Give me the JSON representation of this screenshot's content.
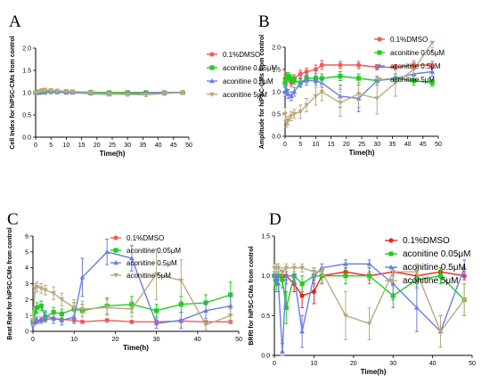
{
  "chart_data": [
    {
      "panel": "A",
      "type": "line",
      "xlabel": "Time(h)",
      "ylabel": "Cell Index for hiPSC-CMs from control",
      "xlim": [
        0,
        50
      ],
      "ylim": [
        0,
        2.0
      ],
      "xticks": [
        0,
        5,
        10,
        15,
        20,
        25,
        30,
        35,
        40,
        45,
        50
      ],
      "yticks": [
        0,
        0.5,
        1.0,
        1.5,
        2.0
      ],
      "ytick_labels": [
        "0.0",
        "0.5",
        "1.0",
        "1.5",
        "2.0"
      ],
      "legend_position": "top-right",
      "x": [
        0,
        1,
        2,
        3,
        5,
        7,
        10,
        12,
        18,
        24,
        30,
        36,
        42,
        48
      ],
      "series": [
        {
          "name": "0.1%DMSO",
          "color": "#f05a5a",
          "marker": "circle",
          "values": [
            1.0,
            1.01,
            1.02,
            1.03,
            1.03,
            1.03,
            1.03,
            1.02,
            1.01,
            1.0,
            1.0,
            1.0,
            1.0,
            1.01
          ],
          "err": [
            0.02,
            0.02,
            0.02,
            0.02,
            0.02,
            0.02,
            0.02,
            0.02,
            0.02,
            0.02,
            0.02,
            0.02,
            0.02,
            0.02
          ]
        },
        {
          "name": "aconitine 0.05μM",
          "color": "#22cc22",
          "marker": "square",
          "values": [
            1.0,
            1.0,
            1.01,
            1.01,
            1.02,
            1.02,
            1.02,
            1.02,
            1.01,
            1.0,
            1.0,
            1.0,
            1.0,
            1.0
          ],
          "err": [
            0.02,
            0.02,
            0.02,
            0.02,
            0.02,
            0.02,
            0.02,
            0.02,
            0.02,
            0.02,
            0.02,
            0.02,
            0.02,
            0.02
          ]
        },
        {
          "name": "aconitine 0.5μM",
          "color": "#6a7fe0",
          "marker": "triangle",
          "values": [
            1.0,
            1.0,
            1.01,
            1.02,
            1.02,
            1.01,
            1.0,
            1.0,
            0.98,
            0.96,
            0.98,
            0.99,
            1.0,
            1.0
          ],
          "err": [
            0.02,
            0.02,
            0.03,
            0.03,
            0.03,
            0.03,
            0.03,
            0.03,
            0.03,
            0.03,
            0.03,
            0.03,
            0.03,
            0.03
          ]
        },
        {
          "name": "aconitine 5μM",
          "color": "#b8aa80",
          "marker": "tridown",
          "values": [
            1.0,
            1.03,
            1.05,
            1.06,
            1.05,
            1.04,
            1.03,
            1.02,
            1.0,
            0.97,
            0.96,
            0.95,
            0.98,
            1.0
          ],
          "err": [
            0.02,
            0.03,
            0.04,
            0.04,
            0.04,
            0.04,
            0.04,
            0.04,
            0.04,
            0.04,
            0.04,
            0.04,
            0.04,
            0.04
          ]
        }
      ]
    },
    {
      "panel": "B",
      "type": "line",
      "xlabel": "Time(h)",
      "ylabel": "Amplitude for hiPSC-CMs from control",
      "xlim": [
        0,
        50
      ],
      "ylim": [
        0,
        2.0
      ],
      "xticks": [
        0,
        5,
        10,
        15,
        20,
        25,
        30,
        35,
        40,
        45,
        50
      ],
      "yticks": [
        0,
        0.5,
        1.0,
        1.5,
        2.0
      ],
      "ytick_labels": [
        "0.0",
        "0.5",
        "1.0",
        "1.5",
        "2.0"
      ],
      "legend_position": "top-right",
      "x": [
        0,
        0.5,
        1,
        2,
        3,
        5,
        7,
        10,
        12,
        18,
        24,
        30,
        36,
        42,
        48
      ],
      "series": [
        {
          "name": "0.1%DMSO",
          "color": "#f05a5a",
          "marker": "circle",
          "values": [
            1.3,
            1.35,
            1.3,
            1.2,
            1.3,
            1.4,
            1.45,
            1.5,
            1.6,
            1.6,
            1.6,
            1.55,
            1.55,
            1.6,
            1.6
          ],
          "err": [
            0.08,
            0.08,
            0.08,
            0.08,
            0.08,
            0.08,
            0.08,
            0.1,
            0.1,
            0.08,
            0.08,
            0.06,
            0.06,
            0.06,
            0.08
          ]
        },
        {
          "name": "aconitine 0.05μM",
          "color": "#22cc22",
          "marker": "square",
          "values": [
            1.2,
            1.3,
            1.35,
            1.3,
            1.25,
            1.2,
            1.3,
            1.3,
            1.3,
            1.35,
            1.3,
            1.25,
            1.3,
            1.25,
            1.2
          ],
          "err": [
            0.08,
            0.08,
            0.08,
            0.08,
            0.08,
            0.08,
            0.08,
            0.1,
            0.1,
            0.1,
            0.1,
            0.1,
            0.1,
            0.1,
            0.08
          ]
        },
        {
          "name": "aconitine 0.5μM",
          "color": "#6a7fe0",
          "marker": "triangle",
          "values": [
            1.0,
            1.05,
            0.95,
            0.9,
            1.0,
            1.2,
            1.25,
            1.25,
            1.2,
            0.9,
            0.85,
            1.25,
            1.3,
            1.4,
            1.45
          ],
          "err": [
            0.1,
            0.1,
            0.1,
            0.1,
            0.1,
            0.1,
            0.1,
            0.1,
            0.1,
            0.25,
            0.3,
            0.1,
            0.1,
            0.1,
            0.1
          ]
        },
        {
          "name": "aconitine 5μM",
          "color": "#b8aa80",
          "marker": "tridown",
          "values": [
            0.5,
            0.3,
            0.35,
            0.45,
            0.5,
            0.55,
            0.7,
            0.9,
            1.0,
            0.75,
            0.95,
            0.85,
            1.2,
            1.5,
            2.1
          ],
          "err": [
            0.15,
            0.1,
            0.1,
            0.1,
            0.1,
            0.15,
            0.15,
            0.2,
            0.2,
            0.3,
            0.3,
            0.35,
            0.3,
            0.2,
            0.2
          ]
        }
      ]
    },
    {
      "panel": "C",
      "type": "line",
      "xlabel": "Time(h)",
      "ylabel": "Beat Rate for hiPSC-CMs from control",
      "xlim": [
        0,
        50
      ],
      "ylim": [
        0,
        6
      ],
      "xticks": [
        0,
        10,
        20,
        30,
        40,
        50
      ],
      "yticks": [
        0,
        1,
        2,
        3,
        4,
        5,
        6
      ],
      "ytick_labels": [
        "0",
        "1",
        "2",
        "3",
        "4",
        "5",
        "6"
      ],
      "legend_position": "top-right",
      "x": [
        0,
        0.5,
        1,
        2,
        3,
        5,
        7,
        10,
        12,
        18,
        24,
        30,
        36,
        42,
        48
      ],
      "series": [
        {
          "name": "0.1%DMSO",
          "color": "#f05a5a",
          "marker": "circle",
          "values": [
            0.6,
            0.7,
            0.6,
            0.7,
            0.75,
            0.8,
            0.75,
            0.7,
            0.6,
            0.7,
            0.6,
            0.6,
            0.65,
            0.6,
            0.6
          ],
          "err": [
            0.1,
            0.1,
            0.1,
            0.1,
            0.1,
            0.1,
            0.1,
            0.1,
            0.1,
            0.1,
            0.1,
            0.1,
            0.1,
            0.1,
            0.1
          ]
        },
        {
          "name": "aconitine 0.05μM",
          "color": "#22cc22",
          "marker": "square",
          "values": [
            0.6,
            1.2,
            1.5,
            1.6,
            0.9,
            1.2,
            1.1,
            1.4,
            1.3,
            1.6,
            1.7,
            1.3,
            1.7,
            1.8,
            2.3
          ],
          "err": [
            0.2,
            0.3,
            0.3,
            0.3,
            0.3,
            0.3,
            0.3,
            0.4,
            0.4,
            0.5,
            0.5,
            0.4,
            0.5,
            0.5,
            0.8
          ]
        },
        {
          "name": "aconitine 0.5μM",
          "color": "#6a7fe0",
          "marker": "triangle",
          "values": [
            0.5,
            0.6,
            0.7,
            0.7,
            1.0,
            0.8,
            0.7,
            0.9,
            3.4,
            5.0,
            4.6,
            0.5,
            0.7,
            1.3,
            1.6
          ],
          "err": [
            0.2,
            0.2,
            0.2,
            0.2,
            0.3,
            0.3,
            0.3,
            0.4,
            1.2,
            0.8,
            0.8,
            0.3,
            0.5,
            0.5,
            0.6
          ]
        },
        {
          "name": "aconitine 5μM",
          "color": "#b8aa80",
          "marker": "tridown",
          "values": [
            0.7,
            2.7,
            2.8,
            2.7,
            2.6,
            2.4,
            2.0,
            1.5,
            1.4,
            1.5,
            1.4,
            3.6,
            3.2,
            0.4,
            1.0
          ],
          "err": [
            0.3,
            0.3,
            0.3,
            0.3,
            0.3,
            0.4,
            0.4,
            0.5,
            0.5,
            0.5,
            0.5,
            1.6,
            1.3,
            0.3,
            0.4
          ]
        }
      ]
    },
    {
      "panel": "D",
      "type": "line",
      "xlabel": "Time(h)",
      "ylabel": "BRRI for hiPSC-CMs from control",
      "xlim": [
        0,
        50
      ],
      "ylim": [
        0,
        1.5
      ],
      "xticks": [
        0,
        10,
        20,
        30,
        40,
        50
      ],
      "yticks": [
        0,
        0.5,
        1.0,
        1.5
      ],
      "ytick_labels": [
        "0.0",
        "0.5",
        "1.0",
        "1.5"
      ],
      "legend_position": "top-right",
      "x": [
        0,
        0.5,
        1,
        2,
        3,
        5,
        7,
        10,
        12,
        18,
        24,
        30,
        36,
        42,
        48
      ],
      "series": [
        {
          "name": "0.1%DMSO",
          "color": "#e8241a",
          "marker": "circle",
          "values": [
            1.0,
            0.95,
            1.0,
            1.0,
            1.0,
            0.9,
            0.75,
            0.8,
            1.0,
            1.05,
            1.0,
            1.05,
            1.0,
            1.05,
            1.0
          ],
          "err": [
            0.05,
            0.05,
            0.05,
            0.05,
            0.05,
            0.1,
            0.15,
            0.15,
            0.1,
            0.05,
            0.05,
            0.05,
            0.05,
            0.05,
            0.05
          ]
        },
        {
          "name": "aconitine 0.05μM",
          "color": "#22cc22",
          "marker": "square",
          "values": [
            1.0,
            0.9,
            1.0,
            0.95,
            0.6,
            1.0,
            0.9,
            1.0,
            1.0,
            1.0,
            1.0,
            0.75,
            0.95,
            1.0,
            0.7
          ],
          "err": [
            0.05,
            0.1,
            0.1,
            0.1,
            0.2,
            0.1,
            0.1,
            0.1,
            0.1,
            0.1,
            0.1,
            0.15,
            0.1,
            0.1,
            0.2
          ]
        },
        {
          "name": "aconitine 0.5μM",
          "color": "#6a7fe0",
          "marker": "triangle",
          "values": [
            1.0,
            1.0,
            0.9,
            0.05,
            1.0,
            1.0,
            0.3,
            1.0,
            1.1,
            1.15,
            1.15,
            0.9,
            0.6,
            0.3,
            1.1
          ],
          "err": [
            0.05,
            0.1,
            0.1,
            0.1,
            0.1,
            0.1,
            0.2,
            0.1,
            0.05,
            0.05,
            0.05,
            0.2,
            0.3,
            0.2,
            0.1
          ]
        },
        {
          "name": "aconitine 5μM",
          "color": "#b8aa80",
          "marker": "tridown",
          "values": [
            1.1,
            1.1,
            1.1,
            1.05,
            1.1,
            1.1,
            1.1,
            1.05,
            1.05,
            0.5,
            0.4,
            1.05,
            1.05,
            0.3,
            0.7
          ],
          "err": [
            0.05,
            0.05,
            0.05,
            0.05,
            0.05,
            0.05,
            0.05,
            0.05,
            0.05,
            0.3,
            0.2,
            0.05,
            0.1,
            0.2,
            0.2
          ]
        }
      ]
    }
  ]
}
